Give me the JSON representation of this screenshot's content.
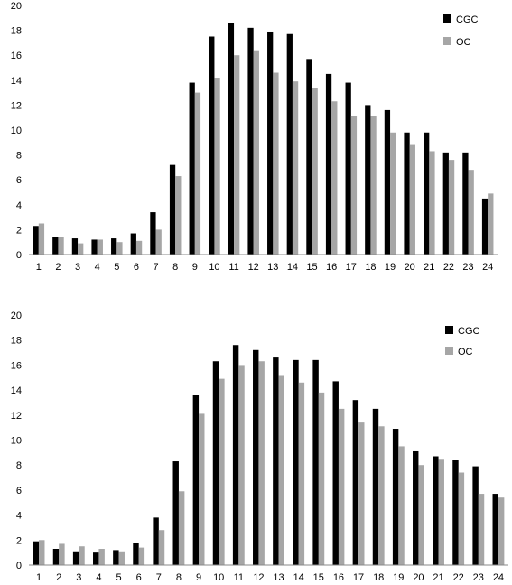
{
  "colors": {
    "CGC": "#000000",
    "OC": "#a6a6a6"
  },
  "chart_data": [
    {
      "type": "bar",
      "title": "",
      "xlabel": "",
      "ylabel": "",
      "ylim": [
        0,
        20
      ],
      "yticks": [
        "0",
        "2",
        "4",
        "6",
        "8",
        "10",
        "12",
        "14",
        "16",
        "18",
        "20"
      ],
      "categories": [
        "1",
        "2",
        "3",
        "4",
        "5",
        "6",
        "7",
        "8",
        "9",
        "10",
        "11",
        "12",
        "13",
        "14",
        "15",
        "16",
        "17",
        "18",
        "19",
        "20",
        "21",
        "22",
        "23",
        "24"
      ],
      "legend_position": "top-right",
      "series": [
        {
          "name": "CGC",
          "values": [
            2.3,
            1.4,
            1.3,
            1.2,
            1.3,
            1.7,
            3.4,
            7.2,
            13.8,
            17.5,
            18.6,
            18.2,
            17.9,
            17.7,
            15.7,
            14.5,
            13.8,
            12.0,
            11.6,
            9.8,
            9.8,
            8.2,
            8.2,
            4.5
          ]
        },
        {
          "name": "OC",
          "values": [
            2.5,
            1.4,
            0.9,
            1.2,
            1.0,
            1.1,
            2.0,
            6.3,
            13.0,
            14.2,
            16.0,
            16.4,
            14.6,
            13.9,
            13.4,
            12.3,
            11.1,
            11.1,
            9.8,
            8.8,
            8.3,
            7.6,
            6.8,
            4.9
          ]
        }
      ]
    },
    {
      "type": "bar",
      "title": "",
      "xlabel": "",
      "ylabel": "",
      "ylim": [
        0,
        20
      ],
      "yticks": [
        "0",
        "2",
        "4",
        "6",
        "8",
        "10",
        "12",
        "14",
        "16",
        "18",
        "20"
      ],
      "categories": [
        "1",
        "2",
        "3",
        "4",
        "5",
        "6",
        "7",
        "8",
        "9",
        "10",
        "11",
        "12",
        "13",
        "14",
        "15",
        "16",
        "17",
        "18",
        "19",
        "20",
        "21",
        "22",
        "23",
        "24"
      ],
      "legend_position": "top-right",
      "series": [
        {
          "name": "CGC",
          "values": [
            1.9,
            1.3,
            1.1,
            1.0,
            1.2,
            1.8,
            3.8,
            8.3,
            13.6,
            16.3,
            17.6,
            17.2,
            16.6,
            16.4,
            16.4,
            14.7,
            13.2,
            12.5,
            10.9,
            9.1,
            8.7,
            8.4,
            7.9,
            5.7
          ]
        },
        {
          "name": "OC",
          "values": [
            2.0,
            1.7,
            1.5,
            1.3,
            1.1,
            1.4,
            2.8,
            5.9,
            12.1,
            14.9,
            16.0,
            16.3,
            15.2,
            14.6,
            13.8,
            12.5,
            11.4,
            11.1,
            9.5,
            8.0,
            8.5,
            7.4,
            5.7,
            5.4
          ]
        }
      ]
    }
  ]
}
